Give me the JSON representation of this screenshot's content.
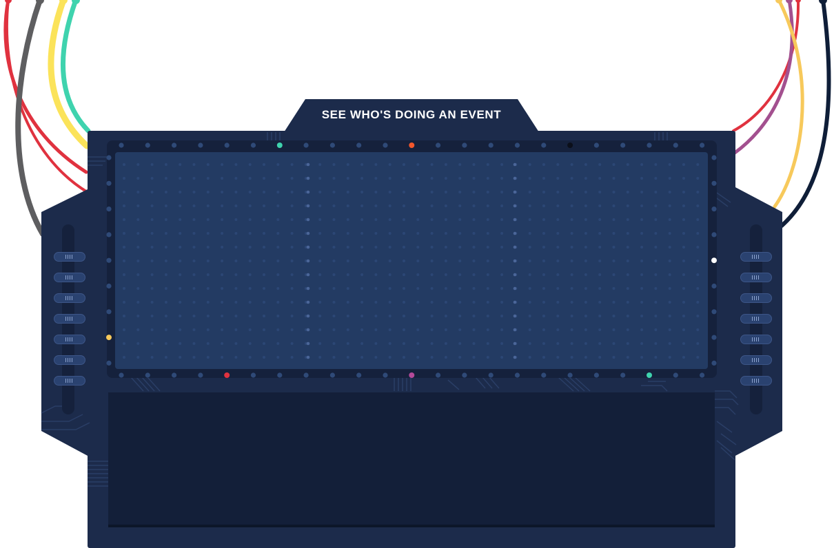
{
  "title": "SEE WHO'S DOING AN EVENT",
  "colors": {
    "board": "#1c2b4b",
    "board_dark": "#15213c",
    "screen": "#233b63",
    "bottom_panel": "#131f39",
    "wire_red": "#e0323f",
    "wire_gray": "#5e5e60",
    "wire_yellow": "#fbe35a",
    "wire_teal": "#3fd3ae",
    "wire_amber": "#f7c95b",
    "wire_purple": "#a3508f",
    "wire_navy": "#0f1e38"
  },
  "left_sliders": {
    "count": 7,
    "icon": "slider-grip-icon"
  },
  "right_sliders": {
    "count": 7,
    "icon": "slider-grip-icon"
  },
  "lit_pins": [
    {
      "edge": "top",
      "index": 6,
      "color": "#3fd3ae"
    },
    {
      "edge": "top",
      "index": 11,
      "color": "#f2572c"
    },
    {
      "edge": "top",
      "index": 17,
      "color": "#0b0f1a"
    },
    {
      "edge": "bottom",
      "index": 4,
      "color": "#e0323f"
    },
    {
      "edge": "bottom",
      "index": 11,
      "color": "#b44a9a"
    },
    {
      "edge": "bottom",
      "index": 20,
      "color": "#3fd3ae"
    },
    {
      "edge": "left",
      "index": 7,
      "color": "#f7c95b"
    },
    {
      "edge": "right",
      "index": 4,
      "color": "#ffffff"
    }
  ]
}
